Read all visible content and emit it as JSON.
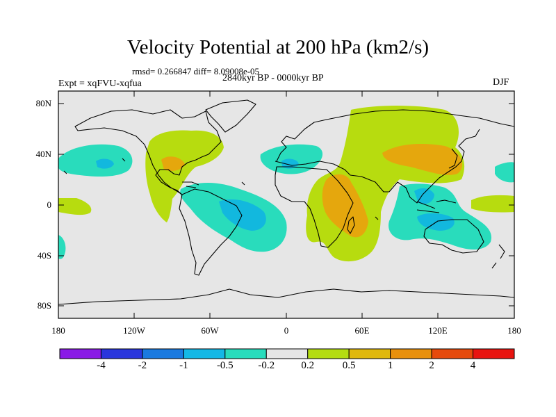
{
  "title": "Velocity Potential at 200 hPa (km2/s)",
  "stats_line": "rmsd= 0.266847 diff= 8.09008e-05",
  "experiment": "Expt = xqFVU-xqfua",
  "period": "2840kyr BP - 0000kyr BP",
  "season": "DJF",
  "colors": {
    "background_zero": "#e6e6e6",
    "level_neg_0_5": "#29dcbc",
    "level_neg_1": "#12b8de",
    "level_pos_0_5": "#b7dc0f",
    "level_pos_1": "#e5a70d"
  },
  "axes": {
    "y_ticks": [
      "80N",
      "40N",
      "0",
      "40S",
      "80S"
    ],
    "x_ticks": [
      "180",
      "120W",
      "60W",
      "0",
      "60E",
      "120E",
      "180"
    ]
  },
  "colorbar": {
    "labels": [
      "-4",
      "-2",
      "-1",
      "-0.5",
      "-0.2",
      "0.2",
      "0.5",
      "1",
      "2",
      "4"
    ],
    "colors": [
      "#8a1ae6",
      "#2a36dc",
      "#1a7ae0",
      "#14b8e6",
      "#28dcbc",
      "#e6e6e6",
      "#b4dc12",
      "#e0b80c",
      "#e8900c",
      "#e64a0c",
      "#e81410"
    ]
  }
}
